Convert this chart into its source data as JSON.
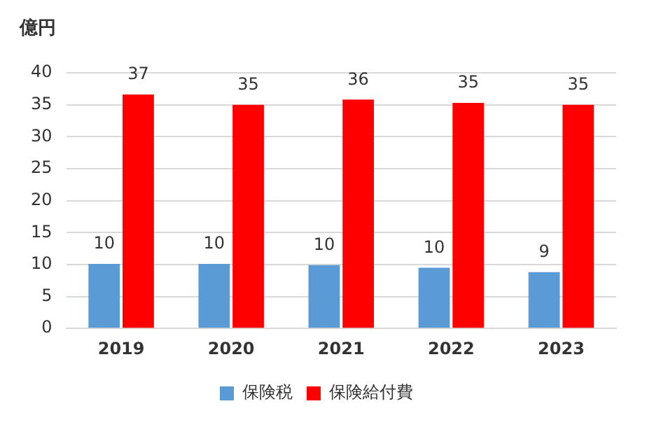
{
  "chart_data": {
    "type": "bar",
    "ylabel": "億円",
    "categories": [
      "2019",
      "2020",
      "2021",
      "2022",
      "2023"
    ],
    "series": [
      {
        "name": "保険税",
        "color": "#5b9bd5",
        "values": [
          10.1,
          10.1,
          9.9,
          9.5,
          8.8
        ],
        "value_labels": [
          "10",
          "10",
          "10",
          "10",
          "9"
        ]
      },
      {
        "name": "保険給付費",
        "color": "#ff0000",
        "values": [
          36.6,
          35.0,
          35.8,
          35.3,
          35.0
        ],
        "value_labels": [
          "37",
          "35",
          "36",
          "35",
          "35"
        ]
      }
    ],
    "ylim": [
      0,
      40
    ],
    "yticks": [
      0,
      5,
      10,
      15,
      20,
      25,
      30,
      35,
      40
    ],
    "grid": "y",
    "legend": "bottom"
  }
}
